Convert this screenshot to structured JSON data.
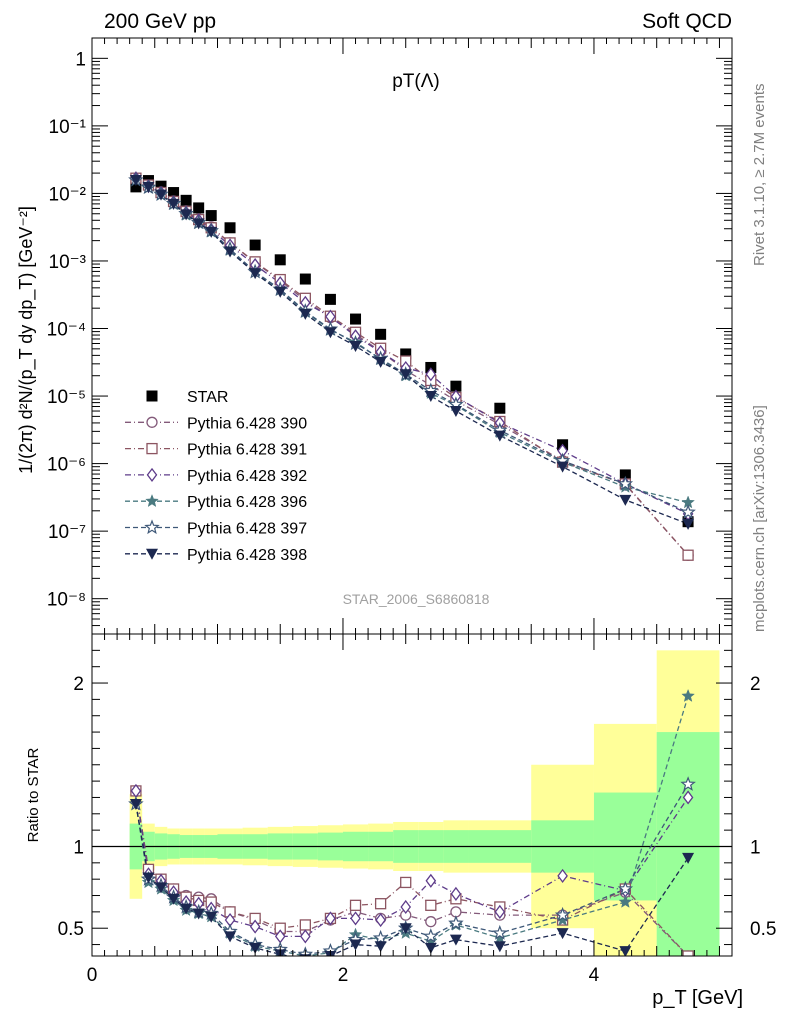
{
  "header": {
    "left": "200 GeV pp",
    "right": "Soft QCD"
  },
  "side_labels": {
    "rivet": "Rivet 3.1.10, ≥ 2.7M events",
    "mcplots": "mcplots.cern.ch [arXiv:1306.3436]"
  },
  "chart_data": [
    {
      "type": "scatter",
      "panel": "main",
      "title": "pT(Λ)",
      "watermark": "STAR_2006_S6860818",
      "ylabel": "1/(2π) d²N/(p_T dy dp_T) [GeV⁻²]",
      "xlabel": "p_T [GeV]",
      "yscale": "log",
      "xlim": [
        0,
        5.1
      ],
      "ylim": [
        3e-09,
        2
      ],
      "ytick_labels": [
        "1",
        "10⁻¹",
        "10⁻²",
        "10⁻³",
        "10⁻⁴",
        "10⁻⁵",
        "10⁻⁶",
        "10⁻⁷",
        "10⁻⁸"
      ],
      "x": [
        0.35,
        0.45,
        0.55,
        0.65,
        0.75,
        0.85,
        0.95,
        1.1,
        1.3,
        1.5,
        1.7,
        1.9,
        2.1,
        2.3,
        2.5,
        2.7,
        2.9,
        3.25,
        3.75,
        4.25,
        4.75
      ],
      "legend": [
        "STAR",
        "Pythia 6.428 390",
        "Pythia 6.428 391",
        "Pythia 6.428 392",
        "Pythia 6.428 396",
        "Pythia 6.428 397",
        "Pythia 6.428 398"
      ],
      "series": [
        {
          "name": "STAR",
          "color": "#000000",
          "values": [
            0.0125,
            0.0155,
            0.0128,
            0.0103,
            0.0079,
            0.0061,
            0.0047,
            0.0031,
            0.00172,
            0.00104,
            0.00054,
            0.00027,
            0.000138,
            8.2e-05,
            4.2e-05,
            2.65e-05,
            1.4e-05,
            6.6e-06,
            1.9e-06,
            6.8e-07,
            1.38e-07
          ]
        },
        {
          "name": "Pythia 6.428 390",
          "color": "#835a7a",
          "values": [
            0.0168,
            0.0131,
            0.0105,
            0.0077,
            0.0055,
            0.0042,
            0.0032,
            0.00185,
            0.00095,
            0.00051,
            0.00026,
            0.000145,
            8.2e-05,
            4.6e-05,
            2.4e-05,
            1.45e-05,
            8.5e-06,
            3.8e-06,
            1.1e-06,
            4.9e-07,
            4.4e-08
          ]
        },
        {
          "name": "Pythia 6.428 391",
          "color": "#8c5561",
          "values": [
            0.0168,
            0.0133,
            0.0103,
            0.0076,
            0.0054,
            0.0041,
            0.0031,
            0.00185,
            0.00097,
            0.00053,
            0.00028,
            0.000152,
            8.8e-05,
            5.1e-05,
            3.3e-05,
            1.7e-05,
            9.5e-06,
            4.2e-06,
            1.05e-06,
            5e-07,
            4.4e-08
          ]
        },
        {
          "name": "Pythia 6.428 392",
          "color": "#5e3c8a",
          "values": [
            0.0168,
            0.0128,
            0.0102,
            0.0074,
            0.0052,
            0.004,
            0.0029,
            0.0017,
            0.00087,
            0.00047,
            0.00024,
            0.00015,
            7.7e-05,
            4.5e-05,
            2.6e-05,
            2.1e-05,
            9.8e-06,
            4e-06,
            1.55e-06,
            5e-07,
            1.8e-07
          ]
        },
        {
          "name": "Pythia 6.428 396",
          "color": "#4a7a80",
          "values": [
            0.0158,
            0.012,
            0.0095,
            0.0069,
            0.0048,
            0.0036,
            0.0027,
            0.00145,
            0.00068,
            0.00037,
            0.000175,
            9.5e-05,
            6.3e-05,
            3.5e-05,
            2e-05,
            1.1e-05,
            7.3e-06,
            2.9e-06,
            1.05e-06,
            4.5e-07,
            2.65e-07
          ]
        },
        {
          "name": "Pythia 6.428 397",
          "color": "#3e5878",
          "values": [
            0.0158,
            0.0123,
            0.0097,
            0.0071,
            0.005,
            0.0037,
            0.0028,
            0.0015,
            0.00069,
            0.00038,
            0.00018,
            9.8e-05,
            6e-05,
            3.6e-05,
            2.1e-05,
            1.2e-05,
            7.5e-06,
            3.1e-06,
            1.1e-06,
            5e-07,
            1.9e-07
          ]
        },
        {
          "name": "Pythia 6.428 398",
          "color": "#1c2850",
          "values": [
            0.0158,
            0.0125,
            0.0096,
            0.007,
            0.0049,
            0.0036,
            0.0027,
            0.00138,
            0.00066,
            0.00035,
            0.000165,
            8.8e-05,
            5.5e-05,
            3.2e-05,
            2.1e-05,
            1e-05,
            6e-06,
            2.6e-06,
            9e-07,
            2.9e-07,
            1.28e-07
          ]
        }
      ]
    },
    {
      "type": "scatter",
      "panel": "ratio",
      "ylabel": "Ratio to STAR",
      "xlabel": "p_T [GeV]",
      "xlim": [
        0,
        5.1
      ],
      "ylim": [
        0.33,
        2.3
      ],
      "ytick_labels": [
        "0.5",
        "1",
        "2"
      ],
      "xtick_labels": [
        "0",
        "2",
        "4"
      ],
      "x": [
        0.35,
        0.45,
        0.55,
        0.65,
        0.75,
        0.85,
        0.95,
        1.1,
        1.3,
        1.5,
        1.7,
        1.9,
        2.1,
        2.3,
        2.5,
        2.7,
        2.9,
        3.25,
        3.75,
        4.25,
        4.75
      ],
      "bin_edges": [
        0.3,
        0.4,
        0.5,
        0.6,
        0.7,
        0.8,
        0.9,
        1.0,
        1.2,
        1.4,
        1.6,
        1.8,
        2.0,
        2.2,
        2.4,
        2.6,
        2.8,
        3.0,
        3.5,
        4.0,
        4.5,
        5.0
      ],
      "band_green_half": [
        0.14,
        0.09,
        0.08,
        0.075,
        0.07,
        0.07,
        0.07,
        0.075,
        0.075,
        0.08,
        0.08,
        0.085,
        0.09,
        0.09,
        0.1,
        0.1,
        0.1,
        0.1,
        0.16,
        0.33,
        0.7
      ],
      "band_yellow_half": [
        0.32,
        0.14,
        0.12,
        0.11,
        0.11,
        0.11,
        0.11,
        0.11,
        0.115,
        0.12,
        0.125,
        0.13,
        0.135,
        0.14,
        0.15,
        0.15,
        0.16,
        0.16,
        0.5,
        0.75,
        1.2
      ],
      "series": [
        {
          "name": "Pythia 6.428 390",
          "values": [
            1.34,
            0.86,
            0.8,
            0.74,
            0.7,
            0.69,
            0.68,
            0.6,
            0.55,
            0.48,
            0.48,
            0.55,
            0.6,
            0.56,
            0.58,
            0.54,
            0.6,
            0.58,
            0.58,
            0.72,
            0.33
          ]
        },
        {
          "name": "Pythia 6.428 391",
          "values": [
            1.34,
            0.86,
            0.8,
            0.74,
            0.69,
            0.67,
            0.66,
            0.6,
            0.56,
            0.5,
            0.52,
            0.56,
            0.64,
            0.65,
            0.78,
            0.64,
            0.68,
            0.63,
            0.55,
            0.74,
            0.33
          ]
        },
        {
          "name": "Pythia 6.428 392",
          "values": [
            1.34,
            0.83,
            0.79,
            0.72,
            0.66,
            0.65,
            0.62,
            0.55,
            0.51,
            0.45,
            0.45,
            0.56,
            0.56,
            0.55,
            0.63,
            0.79,
            0.71,
            0.6,
            0.82,
            0.73,
            1.3
          ]
        },
        {
          "name": "Pythia 6.428 396",
          "values": [
            1.26,
            0.78,
            0.74,
            0.67,
            0.61,
            0.59,
            0.57,
            0.47,
            0.39,
            0.36,
            0.33,
            0.35,
            0.46,
            0.43,
            0.47,
            0.42,
            0.52,
            0.44,
            0.55,
            0.66,
            1.92
          ]
        },
        {
          "name": "Pythia 6.428 397",
          "values": [
            1.26,
            0.8,
            0.76,
            0.69,
            0.63,
            0.6,
            0.59,
            0.48,
            0.4,
            0.37,
            0.34,
            0.36,
            0.43,
            0.44,
            0.5,
            0.45,
            0.53,
            0.47,
            0.58,
            0.74,
            1.38
          ]
        },
        {
          "name": "Pythia 6.428 398",
          "values": [
            1.26,
            0.81,
            0.75,
            0.68,
            0.62,
            0.59,
            0.57,
            0.45,
            0.38,
            0.34,
            0.31,
            0.33,
            0.4,
            0.39,
            0.5,
            0.38,
            0.43,
            0.39,
            0.47,
            0.36,
            0.93
          ]
        }
      ]
    }
  ]
}
